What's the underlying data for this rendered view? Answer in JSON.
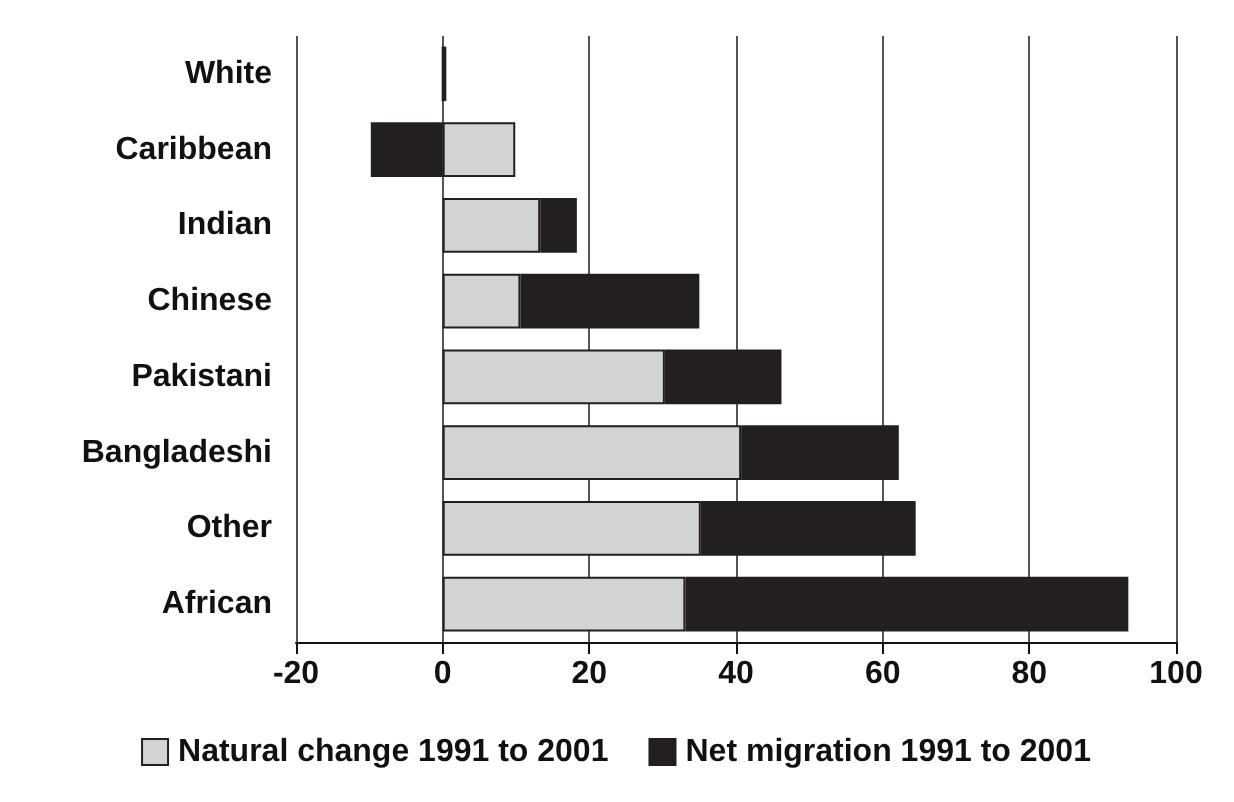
{
  "chart_data": {
    "type": "bar",
    "orientation": "horizontal",
    "stacked": true,
    "categories": [
      "White",
      "Caribbean",
      "Indian",
      "Chinese",
      "Pakistani",
      "Bangladeshi",
      "Other",
      "African"
    ],
    "series": [
      {
        "name": "Natural change 1991 to 2001",
        "color": "#d1d3d4",
        "values": [
          0,
          9.9,
          13.3,
          10.6,
          30.3,
          40.7,
          35.2,
          33.1
        ]
      },
      {
        "name": "Net migration 1991 to 2001",
        "color": "#231f20",
        "values": [
          0.5,
          -9.8,
          5.0,
          24.4,
          15.9,
          21.5,
          29.3,
          60.4
        ]
      }
    ],
    "xlim": [
      -20,
      100
    ],
    "xticks": [
      -20,
      0,
      20,
      40,
      60,
      80,
      100
    ],
    "grid": "x",
    "legend": "bottom"
  }
}
